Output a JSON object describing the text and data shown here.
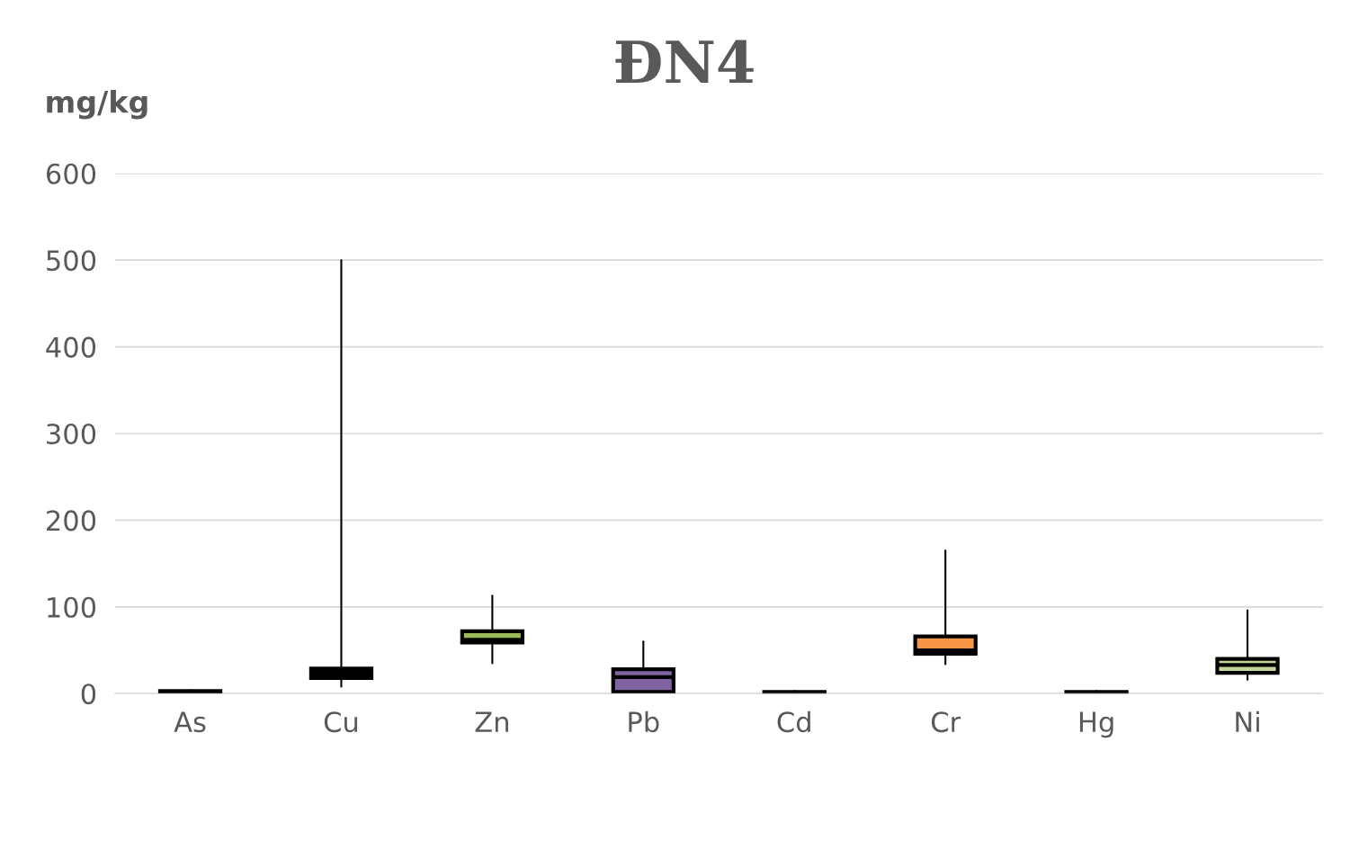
{
  "chart_data": {
    "type": "box",
    "title": "ĐN4",
    "ylabel": "mg/kg",
    "categories": [
      "As",
      "Cu",
      "Zn",
      "Pb",
      "Cd",
      "Cr",
      "Hg",
      "Ni"
    ],
    "colors": [
      "#000000",
      "#000000",
      "#9bbb59",
      "#8064a2",
      "#000000",
      "#f79646",
      "#000000",
      "#c3d69b"
    ],
    "boxes": [
      {
        "low": 1,
        "q1": 2,
        "median": 2,
        "q3": 3,
        "high": 4
      },
      {
        "low": 8,
        "q1": 18,
        "median": 24,
        "q3": 29,
        "high": 500
      },
      {
        "low": 35,
        "q1": 59,
        "median": 62,
        "q3": 72,
        "high": 113
      },
      {
        "low": 2,
        "q1": 2,
        "median": 19,
        "q3": 28,
        "high": 60
      },
      {
        "low": 0.5,
        "q1": 1,
        "median": 1,
        "q3": 2,
        "high": 3
      },
      {
        "low": 34,
        "q1": 46,
        "median": 50,
        "q3": 66,
        "high": 165
      },
      {
        "low": 0.5,
        "q1": 1,
        "median": 1,
        "q3": 2,
        "high": 3
      },
      {
        "low": 16,
        "q1": 24,
        "median": 33,
        "q3": 40,
        "high": 96
      }
    ],
    "ylim": [
      0,
      600
    ],
    "yticks": [
      0,
      100,
      200,
      300,
      400,
      500,
      600
    ],
    "grid": "y"
  }
}
